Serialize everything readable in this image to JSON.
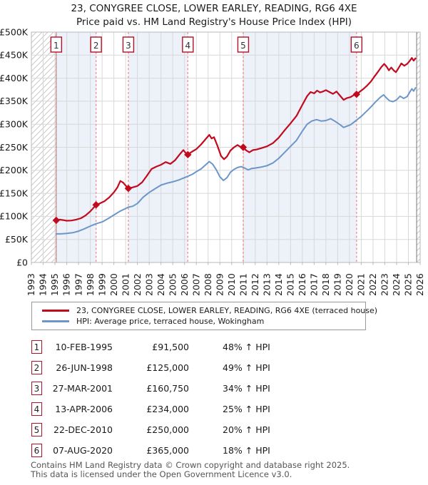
{
  "title": {
    "line1": "23, CONYGREE CLOSE, LOWER EARLEY, READING, RG6 4XE",
    "line2": "Price paid vs. HM Land Registry's House Price Index (HPI)"
  },
  "colors": {
    "accent": "#b11226",
    "price_paid": "#c20a1e",
    "hpi": "#6d96c8",
    "sale_dash": "#f48f8f",
    "shade": "#ecf1fa",
    "grid": "#d8d8d8",
    "plot_border": "#b9b9b9",
    "hatch": "#c9c9c9",
    "boundary": "#777777",
    "text": "#1a1a1a",
    "muted": "#555555"
  },
  "legend": [
    {
      "series": "price_paid",
      "label": "23, CONYGREE CLOSE, LOWER EARLEY, READING, RG6 4XE (terraced house)"
    },
    {
      "series": "hpi",
      "label": "HPI: Average price, terraced house, Wokingham"
    }
  ],
  "sales": [
    {
      "n": "1",
      "date": "10-FEB-1995",
      "price": 91500,
      "price_label": "£91,500",
      "hpi_label": "48% ↑ HPI",
      "year": 1995.11
    },
    {
      "n": "2",
      "date": "26-JUN-1998",
      "price": 125000,
      "price_label": "£125,000",
      "hpi_label": "49% ↑ HPI",
      "year": 1998.49
    },
    {
      "n": "3",
      "date": "27-MAR-2001",
      "price": 160750,
      "price_label": "£160,750",
      "hpi_label": "34% ↑ HPI",
      "year": 2001.23
    },
    {
      "n": "4",
      "date": "13-APR-2006",
      "price": 234000,
      "price_label": "£234,000",
      "hpi_label": "25% ↑ HPI",
      "year": 2006.28
    },
    {
      "n": "5",
      "date": "22-DEC-2010",
      "price": 250000,
      "price_label": "£250,000",
      "hpi_label": "20% ↑ HPI",
      "year": 2010.98
    },
    {
      "n": "6",
      "date": "07-AUG-2020",
      "price": 365000,
      "price_label": "£365,000",
      "hpi_label": "18% ↑ HPI",
      "year": 2020.6
    }
  ],
  "footer": {
    "line1": "Contains HM Land Registry data © Crown copyright and database right 2025.",
    "line2": "This data is licensed under the Open Government Licence v3.0."
  },
  "chart_data": {
    "type": "line",
    "title": "23, CONYGREE CLOSE, LOWER EARLEY, READING, RG6 4XE — Price paid vs. HPI",
    "xlabel": "",
    "ylabel": "",
    "xlim": [
      1993,
      2026
    ],
    "ylim": [
      0,
      500000
    ],
    "grid": true,
    "legend_position": "bottom",
    "xticks": [
      1993,
      1994,
      1995,
      1996,
      1997,
      1998,
      1999,
      2000,
      2001,
      2002,
      2003,
      2004,
      2005,
      2006,
      2007,
      2008,
      2009,
      2010,
      2011,
      2012,
      2013,
      2014,
      2015,
      2016,
      2017,
      2018,
      2019,
      2020,
      2021,
      2022,
      2023,
      2024,
      2025,
      2026
    ],
    "ytick_values": [
      0,
      50000,
      100000,
      150000,
      200000,
      250000,
      300000,
      350000,
      400000,
      450000,
      500000
    ],
    "ytick_labels": [
      "£0",
      "£50K",
      "£100K",
      "£150K",
      "£200K",
      "£250K",
      "£300K",
      "£350K",
      "£400K",
      "£450K",
      "£500K"
    ],
    "shaded_periods": [
      [
        1995.11,
        1998.49
      ],
      [
        2001.23,
        2006.28
      ],
      [
        2010.98,
        2020.6
      ]
    ],
    "hatched_periods": [
      [
        1993,
        1995.11
      ],
      [
        2025.7,
        2026
      ]
    ],
    "series": [
      {
        "name": "hpi",
        "color_key": "hpi",
        "points": [
          [
            1995.11,
            62000
          ],
          [
            1995.5,
            62000
          ],
          [
            1996,
            63000
          ],
          [
            1996.5,
            64500
          ],
          [
            1997,
            68000
          ],
          [
            1997.5,
            73000
          ],
          [
            1998,
            79000
          ],
          [
            1998.49,
            84000
          ],
          [
            1999,
            88000
          ],
          [
            1999.5,
            95000
          ],
          [
            2000,
            103000
          ],
          [
            2000.5,
            111000
          ],
          [
            2001,
            117000
          ],
          [
            2001.23,
            120000
          ],
          [
            2001.6,
            122000
          ],
          [
            2002,
            128000
          ],
          [
            2002.5,
            142000
          ],
          [
            2003,
            152000
          ],
          [
            2003.5,
            160000
          ],
          [
            2004,
            168000
          ],
          [
            2004.5,
            172000
          ],
          [
            2005,
            175000
          ],
          [
            2005.5,
            179000
          ],
          [
            2006,
            184000
          ],
          [
            2006.28,
            187000
          ],
          [
            2006.7,
            192000
          ],
          [
            2007,
            197000
          ],
          [
            2007.4,
            203000
          ],
          [
            2007.8,
            212000
          ],
          [
            2008.1,
            219000
          ],
          [
            2008.4,
            213000
          ],
          [
            2008.7,
            201000
          ],
          [
            2009,
            186000
          ],
          [
            2009.3,
            178000
          ],
          [
            2009.6,
            184000
          ],
          [
            2009.9,
            196000
          ],
          [
            2010.2,
            202000
          ],
          [
            2010.5,
            206000
          ],
          [
            2010.8,
            208000
          ],
          [
            2011.1,
            205000
          ],
          [
            2011.4,
            201000
          ],
          [
            2011.7,
            204000
          ],
          [
            2012,
            205000
          ],
          [
            2012.5,
            207000
          ],
          [
            2013,
            210000
          ],
          [
            2013.5,
            216000
          ],
          [
            2014,
            226000
          ],
          [
            2014.5,
            239000
          ],
          [
            2015,
            252000
          ],
          [
            2015.5,
            265000
          ],
          [
            2016,
            285000
          ],
          [
            2016.4,
            300000
          ],
          [
            2016.8,
            307000
          ],
          [
            2017.2,
            310000
          ],
          [
            2017.6,
            307000
          ],
          [
            2018,
            308000
          ],
          [
            2018.4,
            312000
          ],
          [
            2018.8,
            306000
          ],
          [
            2019.2,
            299000
          ],
          [
            2019.5,
            293000
          ],
          [
            2019.8,
            296000
          ],
          [
            2020.1,
            299000
          ],
          [
            2020.6,
            309000
          ],
          [
            2021,
            317000
          ],
          [
            2021.4,
            327000
          ],
          [
            2021.8,
            337000
          ],
          [
            2022.2,
            348000
          ],
          [
            2022.6,
            358000
          ],
          [
            2022.9,
            364000
          ],
          [
            2023.1,
            358000
          ],
          [
            2023.4,
            351000
          ],
          [
            2023.7,
            349000
          ],
          [
            2024,
            353000
          ],
          [
            2024.3,
            361000
          ],
          [
            2024.6,
            356000
          ],
          [
            2024.9,
            360000
          ],
          [
            2025.1,
            369000
          ],
          [
            2025.3,
            377000
          ],
          [
            2025.45,
            372000
          ],
          [
            2025.6,
            379000
          ]
        ]
      },
      {
        "name": "price_paid",
        "color_key": "price_paid",
        "points": [
          [
            1995.11,
            91500
          ],
          [
            1995.4,
            93000
          ],
          [
            1995.7,
            92000
          ],
          [
            1996,
            90500
          ],
          [
            1996.4,
            91000
          ],
          [
            1996.8,
            93000
          ],
          [
            1997.2,
            96000
          ],
          [
            1997.6,
            102000
          ],
          [
            1998,
            111000
          ],
          [
            1998.49,
            125000
          ],
          [
            1998.8,
            128000
          ],
          [
            1999.2,
            133000
          ],
          [
            1999.6,
            141000
          ],
          [
            2000,
            152000
          ],
          [
            2000.3,
            163000
          ],
          [
            2000.55,
            177000
          ],
          [
            2000.8,
            173000
          ],
          [
            2001,
            167000
          ],
          [
            2001.23,
            160750
          ],
          [
            2001.6,
            163000
          ],
          [
            2002,
            166000
          ],
          [
            2002.4,
            174000
          ],
          [
            2002.8,
            188000
          ],
          [
            2003.2,
            203000
          ],
          [
            2003.6,
            208000
          ],
          [
            2004,
            212000
          ],
          [
            2004.4,
            218000
          ],
          [
            2004.8,
            214000
          ],
          [
            2005.2,
            222000
          ],
          [
            2005.6,
            235000
          ],
          [
            2005.9,
            244000
          ],
          [
            2006.1,
            238000
          ],
          [
            2006.28,
            234000
          ],
          [
            2006.6,
            240000
          ],
          [
            2007,
            246000
          ],
          [
            2007.4,
            256000
          ],
          [
            2007.8,
            268000
          ],
          [
            2008.1,
            277000
          ],
          [
            2008.3,
            269000
          ],
          [
            2008.5,
            272000
          ],
          [
            2008.8,
            253000
          ],
          [
            2009.1,
            231000
          ],
          [
            2009.35,
            224000
          ],
          [
            2009.6,
            230000
          ],
          [
            2009.9,
            243000
          ],
          [
            2010.2,
            250000
          ],
          [
            2010.5,
            255000
          ],
          [
            2010.75,
            251000
          ],
          [
            2010.98,
            250000
          ],
          [
            2011.2,
            244000
          ],
          [
            2011.5,
            239000
          ],
          [
            2011.8,
            244000
          ],
          [
            2012.1,
            245000
          ],
          [
            2012.5,
            248000
          ],
          [
            2013,
            252000
          ],
          [
            2013.5,
            259000
          ],
          [
            2014,
            271000
          ],
          [
            2014.5,
            287000
          ],
          [
            2015,
            302000
          ],
          [
            2015.5,
            318000
          ],
          [
            2016,
            342000
          ],
          [
            2016.4,
            361000
          ],
          [
            2016.7,
            370000
          ],
          [
            2017,
            367000
          ],
          [
            2017.25,
            373000
          ],
          [
            2017.5,
            369000
          ],
          [
            2017.75,
            371000
          ],
          [
            2018,
            374000
          ],
          [
            2018.3,
            370000
          ],
          [
            2018.6,
            366000
          ],
          [
            2018.9,
            371000
          ],
          [
            2019.2,
            362000
          ],
          [
            2019.5,
            353000
          ],
          [
            2019.8,
            357000
          ],
          [
            2020.1,
            359000
          ],
          [
            2020.35,
            363000
          ],
          [
            2020.6,
            365000
          ],
          [
            2020.9,
            371000
          ],
          [
            2021.2,
            377000
          ],
          [
            2021.5,
            384000
          ],
          [
            2021.8,
            392000
          ],
          [
            2022.1,
            403000
          ],
          [
            2022.4,
            413000
          ],
          [
            2022.7,
            424000
          ],
          [
            2022.95,
            431000
          ],
          [
            2023.15,
            425000
          ],
          [
            2023.35,
            417000
          ],
          [
            2023.55,
            423000
          ],
          [
            2023.75,
            417000
          ],
          [
            2023.95,
            413000
          ],
          [
            2024.15,
            421000
          ],
          [
            2024.4,
            432000
          ],
          [
            2024.65,
            427000
          ],
          [
            2024.9,
            431000
          ],
          [
            2025.1,
            437000
          ],
          [
            2025.3,
            444000
          ],
          [
            2025.45,
            438000
          ],
          [
            2025.6,
            443000
          ]
        ]
      }
    ]
  }
}
